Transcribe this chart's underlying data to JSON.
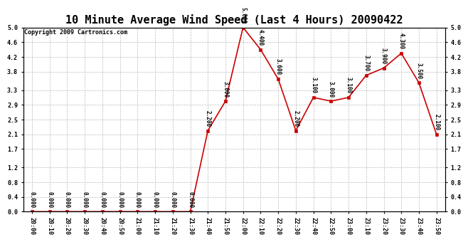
{
  "title": "10 Minute Average Wind Speed (Last 4 Hours) 20090422",
  "copyright": "Copyright 2009 Cartronics.com",
  "x_labels": [
    "20:00",
    "20:10",
    "20:20",
    "20:30",
    "20:40",
    "20:50",
    "21:00",
    "21:10",
    "21:20",
    "21:30",
    "21:40",
    "21:50",
    "22:00",
    "22:10",
    "22:20",
    "22:30",
    "22:40",
    "22:50",
    "23:00",
    "23:10",
    "23:20",
    "23:30",
    "23:40",
    "23:50"
  ],
  "y_values": [
    0.0,
    0.0,
    0.0,
    0.0,
    0.0,
    0.0,
    0.0,
    0.0,
    0.0,
    0.0,
    2.2,
    3.0,
    5.0,
    4.4,
    3.6,
    2.2,
    3.1,
    3.0,
    3.1,
    3.7,
    3.9,
    4.3,
    3.5,
    2.1
  ],
  "point_labels": [
    "0.000",
    "0.000",
    "0.000",
    "0.000",
    "0.000",
    "0.000",
    "0.000",
    "0.000",
    "0.000",
    "0.000",
    "2.200",
    "3.000",
    "5.000",
    "4.400",
    "3.600",
    "2.200",
    "3.100",
    "3.000",
    "3.100",
    "3.700",
    "3.900",
    "4.300",
    "3.500",
    "2.100"
  ],
  "line_color": "#cc0000",
  "marker_color": "#cc0000",
  "bg_color": "#ffffff",
  "grid_color": "#bbbbbb",
  "ylim": [
    0.0,
    5.0
  ],
  "yticks_left": [
    0.0,
    0.4,
    0.8,
    1.2,
    1.7,
    2.1,
    2.5,
    2.9,
    3.3,
    3.8,
    4.2,
    4.6,
    5.0
  ],
  "title_fontsize": 11,
  "tick_fontsize": 6,
  "copyright_fontsize": 6
}
